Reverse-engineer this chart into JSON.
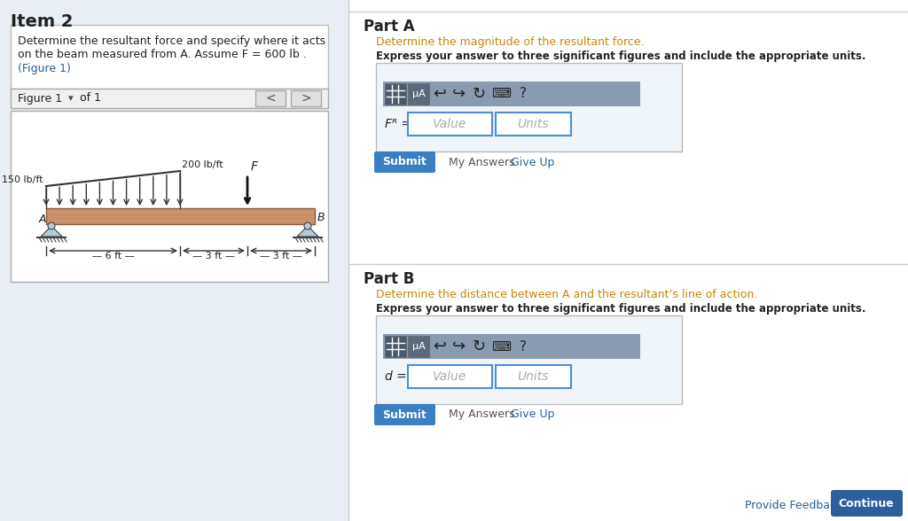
{
  "bg_color": "#e8eef4",
  "white": "#ffffff",
  "divider_color": "#cccccc",
  "item_title": "Item 2",
  "item_text_line1": "Determine the resultant force and specify where it acts",
  "item_text_line2": "on the beam measured from A. Assume F = 600 lb .",
  "figure_label": "Figure 1",
  "of_label": "of 1",
  "part_a_title": "Part A",
  "part_a_sub": "Determine the magnitude of the resultant force.",
  "part_a_express": "Express your answer to three significant figures and include the appropriate units.",
  "part_b_title": "Part B",
  "part_b_sub": "Determine the distance between A and the resultant’s line of action.",
  "part_b_express": "Express your answer to three significant figures and include the appropriate units.",
  "submit_color": "#3a7fc1",
  "continue_color": "#2d5f9e",
  "input_border": "#4a90d9",
  "link_color": "#2a6099",
  "orange_text": "#c8860a",
  "beam_color": "#c8906a",
  "beam_dark": "#8b5e3c"
}
